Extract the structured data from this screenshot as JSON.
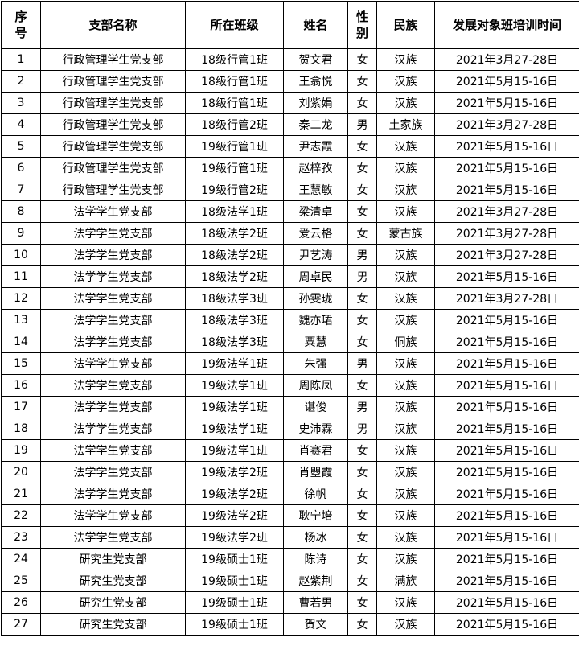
{
  "headers": [
    "序号",
    "支部名称",
    "所在班级",
    "姓名",
    "性别",
    "民族",
    "发展对象班培训时间"
  ],
  "rows": [
    [
      "1",
      "行政管理学生党支部",
      "18级行管1班",
      "贺文君",
      "女",
      "汉族",
      "2021年3月27-28日"
    ],
    [
      "2",
      "行政管理学生党支部",
      "18级行管1班",
      "王翕悦",
      "女",
      "汉族",
      "2021年5月15-16日"
    ],
    [
      "3",
      "行政管理学生党支部",
      "18级行管1班",
      "刘紫娟",
      "女",
      "汉族",
      "2021年5月15-16日"
    ],
    [
      "4",
      "行政管理学生党支部",
      "18级行管2班",
      "秦二龙",
      "男",
      "土家族",
      "2021年3月27-28日"
    ],
    [
      "5",
      "行政管理学生党支部",
      "19级行管1班",
      "尹志霞",
      "女",
      "汉族",
      "2021年5月15-16日"
    ],
    [
      "6",
      "行政管理学生党支部",
      "19级行管1班",
      "赵梓孜",
      "女",
      "汉族",
      "2021年5月15-16日"
    ],
    [
      "7",
      "行政管理学生党支部",
      "19级行管2班",
      "王慧敏",
      "女",
      "汉族",
      "2021年5月15-16日"
    ],
    [
      "8",
      "法学学生党支部",
      "18级法学1班",
      "梁清卓",
      "女",
      "汉族",
      "2021年3月27-28日"
    ],
    [
      "9",
      "法学学生党支部",
      "18级法学2班",
      "爱云格",
      "女",
      "蒙古族",
      "2021年3月27-28日"
    ],
    [
      "10",
      "法学学生党支部",
      "18级法学2班",
      "尹艺涛",
      "男",
      "汉族",
      "2021年3月27-28日"
    ],
    [
      "11",
      "法学学生党支部",
      "18级法学2班",
      "周卓民",
      "男",
      "汉族",
      "2021年5月15-16日"
    ],
    [
      "12",
      "法学学生党支部",
      "18级法学3班",
      "孙雯珑",
      "女",
      "汉族",
      "2021年3月27-28日"
    ],
    [
      "13",
      "法学学生党支部",
      "18级法学3班",
      "魏亦珺",
      "女",
      "汉族",
      "2021年5月15-16日"
    ],
    [
      "14",
      "法学学生党支部",
      "18级法学3班",
      "粟慧",
      "女",
      "侗族",
      "2021年5月15-16日"
    ],
    [
      "15",
      "法学学生党支部",
      "19级法学1班",
      "朱强",
      "男",
      "汉族",
      "2021年5月15-16日"
    ],
    [
      "16",
      "法学学生党支部",
      "19级法学1班",
      "周陈凤",
      "女",
      "汉族",
      "2021年5月15-16日"
    ],
    [
      "17",
      "法学学生党支部",
      "19级法学1班",
      "谌俊",
      "男",
      "汉族",
      "2021年5月15-16日"
    ],
    [
      "18",
      "法学学生党支部",
      "19级法学1班",
      "史沛霖",
      "男",
      "汉族",
      "2021年5月15-16日"
    ],
    [
      "19",
      "法学学生党支部",
      "19级法学1班",
      "肖赛君",
      "女",
      "汉族",
      "2021年5月15-16日"
    ],
    [
      "20",
      "法学学生党支部",
      "19级法学2班",
      "肖瞾霞",
      "女",
      "汉族",
      "2021年5月15-16日"
    ],
    [
      "21",
      "法学学生党支部",
      "19级法学2班",
      "徐帆",
      "女",
      "汉族",
      "2021年5月15-16日"
    ],
    [
      "22",
      "法学学生党支部",
      "19级法学2班",
      "耿宁培",
      "女",
      "汉族",
      "2021年5月15-16日"
    ],
    [
      "23",
      "法学学生党支部",
      "19级法学2班",
      "杨冰",
      "女",
      "汉族",
      "2021年5月15-16日"
    ],
    [
      "24",
      "研究生党支部",
      "19级硕士1班",
      "陈诗",
      "女",
      "汉族",
      "2021年5月15-16日"
    ],
    [
      "25",
      "研究生党支部",
      "19级硕士1班",
      "赵紫荆",
      "女",
      "满族",
      "2021年5月15-16日"
    ],
    [
      "26",
      "研究生党支部",
      "19级硕士1班",
      "曹若男",
      "女",
      "汉族",
      "2021年5月15-16日"
    ],
    [
      "27",
      "研究生党支部",
      "19级硕士1班",
      "贺文",
      "女",
      "汉族",
      "2021年5月15-16日"
    ]
  ]
}
